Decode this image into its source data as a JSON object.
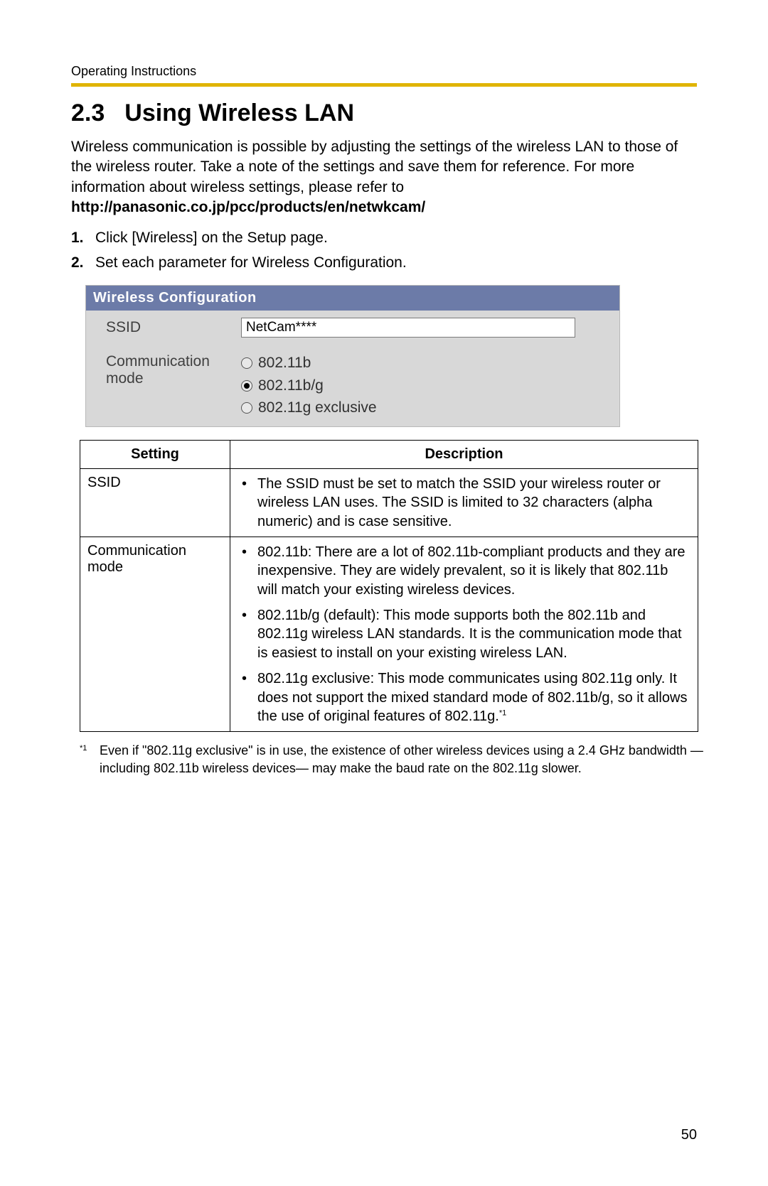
{
  "header": {
    "label": "Operating Instructions",
    "rule_color": "#e0b400"
  },
  "section": {
    "number": "2.3",
    "title": "Using Wireless LAN"
  },
  "intro": {
    "text": "Wireless communication is possible by adjusting the settings of the wireless LAN to those of the wireless router. Take a note of the settings and save them for reference. For more information about wireless settings, please refer to",
    "url": "http://panasonic.co.jp/pcc/products/en/netwkcam/"
  },
  "steps": [
    {
      "n": "1.",
      "text": "Click [Wireless] on the Setup page."
    },
    {
      "n": "2.",
      "text": "Set each parameter for Wireless Configuration."
    }
  ],
  "config_panel": {
    "title": "Wireless Configuration",
    "title_bg": "#6c7ba8",
    "title_color": "#ffffff",
    "panel_bg": "#d8d8d8",
    "rows": {
      "ssid": {
        "label": "SSID",
        "value": "NetCam****"
      },
      "comm_mode": {
        "label": "Communication mode",
        "options": [
          {
            "label": "802.11b",
            "selected": false
          },
          {
            "label": "802.11b/g",
            "selected": true
          },
          {
            "label": "802.11g exclusive",
            "selected": false
          }
        ]
      }
    }
  },
  "settings_table": {
    "columns": [
      "Setting",
      "Description"
    ],
    "rows": [
      {
        "setting": "SSID",
        "bullets": [
          "The SSID must be set to match the SSID your wireless router or wireless LAN uses. The SSID is limited to 32 characters (alpha numeric) and is case sensitive."
        ]
      },
      {
        "setting": "Communication mode",
        "bullets": [
          "802.11b: There are a lot of 802.11b-compliant products and they are inexpensive. They are widely prevalent, so it is likely that 802.11b will match your existing wireless devices.",
          "802.11b/g (default): This mode supports both the 802.11b and 802.11g wireless LAN standards. It is the communication mode that is easiest to install on your existing wireless LAN.",
          "802.11g exclusive: This mode communicates using 802.11g only. It does not support the mixed standard mode of 802.11b/g, so it allows the use of original features of 802.11g."
        ],
        "last_bullet_sup": "*1"
      }
    ]
  },
  "footnote": {
    "mark": "*1",
    "text": "Even if \"802.11g exclusive\" is in use, the existence of other wireless devices using a 2.4 GHz bandwidth —including 802.11b wireless devices— may make the baud rate on the 802.11g slower."
  },
  "page_number": "50"
}
